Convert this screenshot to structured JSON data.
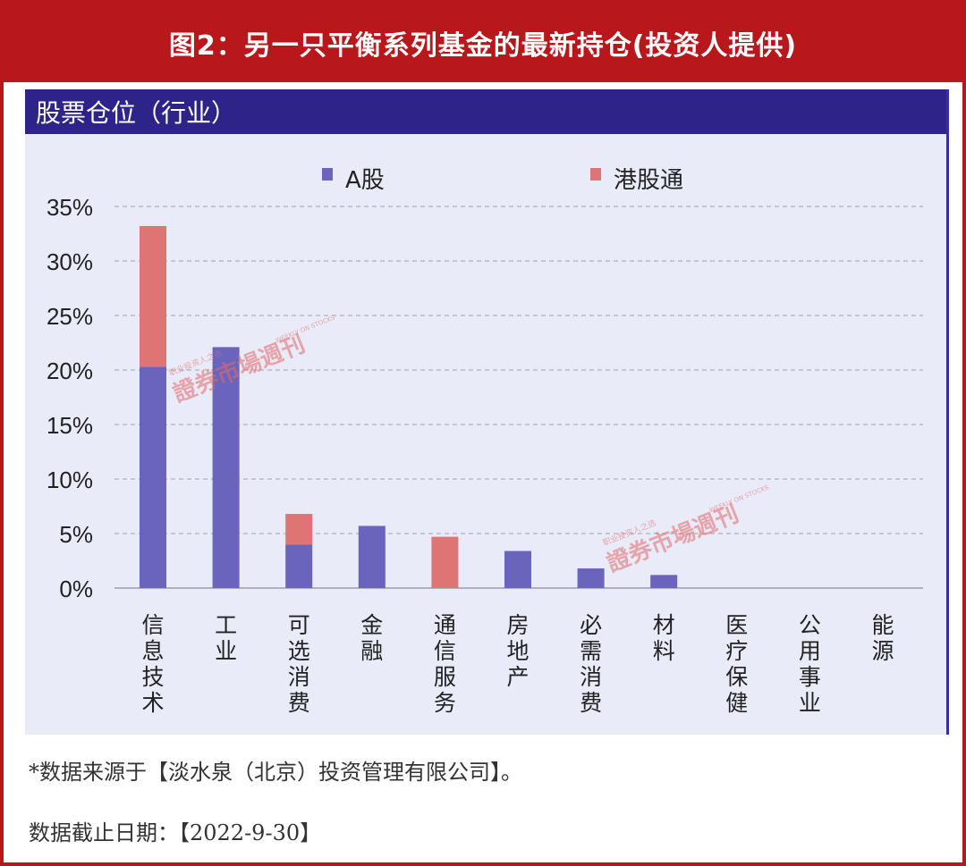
{
  "banner": {
    "title": "图2：另一只平衡系列基金的最新持仓(投资人提供)"
  },
  "panel": {
    "title": "股票仓位（行业）"
  },
  "footnotes": {
    "source": "*数据来源于【淡水泉（北京）投资管理有限公司】。",
    "date": "数据截止日期：【2022-9-30】"
  },
  "watermark": {
    "text": "證券市場",
    "suffix": "週刊",
    "small": "职业投资人之选",
    "english": "WEEKLY ON STOCKS"
  },
  "colors": {
    "a_share": "#6a64bd",
    "hk_connect": "#de7574",
    "header": "#2e2388",
    "banner": "#b8171b"
  },
  "chart_data": {
    "type": "bar",
    "stacked": true,
    "categories": [
      "信息技术",
      "工业",
      "可选消费",
      "金融",
      "通信服务",
      "房地产",
      "必需消费",
      "材料",
      "医疗保健",
      "公用事业",
      "能源"
    ],
    "series": [
      {
        "name": "A股",
        "values": [
          20.3,
          22.1,
          4.0,
          5.7,
          0,
          3.4,
          1.8,
          1.2,
          0,
          0,
          0
        ]
      },
      {
        "name": "港股通",
        "values": [
          12.9,
          0,
          2.8,
          0,
          4.7,
          0,
          0,
          0,
          0,
          0,
          0
        ]
      }
    ],
    "yticks": [
      "35%",
      "30%",
      "25%",
      "20%",
      "15%",
      "10%",
      "5%",
      "0%"
    ],
    "ylim": [
      0,
      35
    ],
    "grid": true,
    "legend_position": "top"
  }
}
